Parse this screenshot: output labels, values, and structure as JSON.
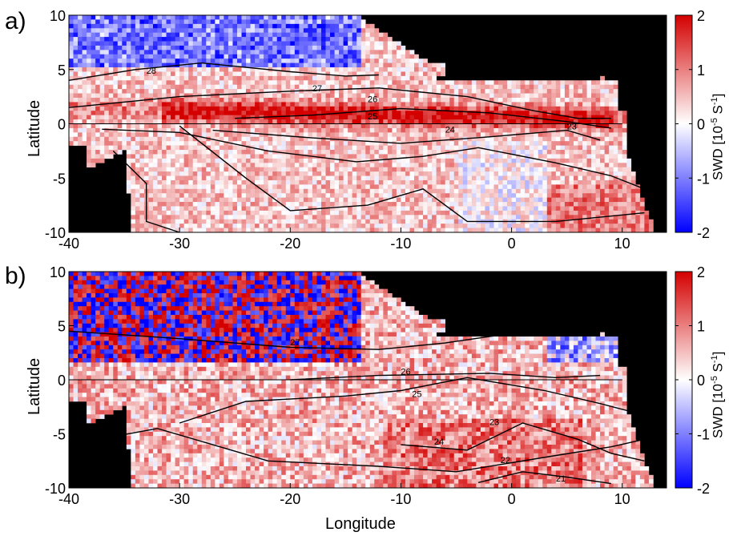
{
  "colormap": {
    "low": "#0000ff",
    "mid": "#ffffff",
    "high": "#d40000",
    "land": "#000000"
  },
  "panels": [
    {
      "letter": "a)",
      "ylabel": "Latitude",
      "cb_label_main": "SWD [10",
      "cb_label_sup": "-5",
      "cb_label_unit": " S",
      "cb_label_sup2": "-1",
      "cb_label_end": "]",
      "cb_ticks": [
        "2",
        "1",
        "0",
        "-1",
        "-2"
      ],
      "yticks": [
        "10",
        "5",
        "0",
        "-5",
        "-10"
      ],
      "xticks": [
        "-40",
        "-30",
        "-20",
        "-10",
        "0",
        "10"
      ],
      "contour_labels": [
        "28",
        "27",
        "26",
        "25",
        "24",
        "23"
      ]
    },
    {
      "letter": "b)",
      "ylabel": "Latitude",
      "cb_label_main": "SWD [10",
      "cb_label_sup": "-5",
      "cb_label_unit": " S",
      "cb_label_sup2": "-1",
      "cb_label_end": "]",
      "cb_ticks": [
        "2",
        "1",
        "0",
        "-1",
        "-2"
      ],
      "yticks": [
        "10",
        "5",
        "0",
        "-5",
        "-10"
      ],
      "xticks": [
        "-40",
        "-30",
        "-20",
        "-10",
        "0",
        "10"
      ],
      "contour_labels": [
        "27",
        "26",
        "25",
        "24",
        "23",
        "22",
        "21"
      ]
    }
  ],
  "xlabel": "Longitude",
  "chart_data": [
    {
      "type": "heatmap",
      "title": "",
      "xlabel": "",
      "ylabel": "Latitude",
      "xlim": [
        -40,
        14
      ],
      "ylim": [
        -10,
        10
      ],
      "colorbar": {
        "label": "SWD [10^-5 S^-1]",
        "range": [
          -2,
          2
        ]
      },
      "xticks": [
        -40,
        -30,
        -20,
        -10,
        0,
        10
      ],
      "yticks": [
        -10,
        -5,
        0,
        5,
        10
      ],
      "contour_levels": [
        23,
        24,
        25,
        26,
        27,
        28
      ],
      "description_of_field": "red band of positive SWD along ~0.5N from -30 to 8 lon; blue north of 5N west of -25"
    },
    {
      "type": "heatmap",
      "title": "",
      "xlabel": "Longitude",
      "ylabel": "Latitude",
      "xlim": [
        -40,
        14
      ],
      "ylim": [
        -10,
        10
      ],
      "colorbar": {
        "label": "SWD [10^-5 S^-1]",
        "range": [
          -2,
          2
        ]
      },
      "xticks": [
        -40,
        -30,
        -20,
        -10,
        0,
        10
      ],
      "yticks": [
        -10,
        -5,
        0,
        5,
        10
      ],
      "contour_levels": [
        21,
        22,
        23,
        24,
        25,
        26,
        27
      ],
      "description_of_field": "strongly mixed red/blue noise north of 2N west of -15; light red to south"
    }
  ]
}
